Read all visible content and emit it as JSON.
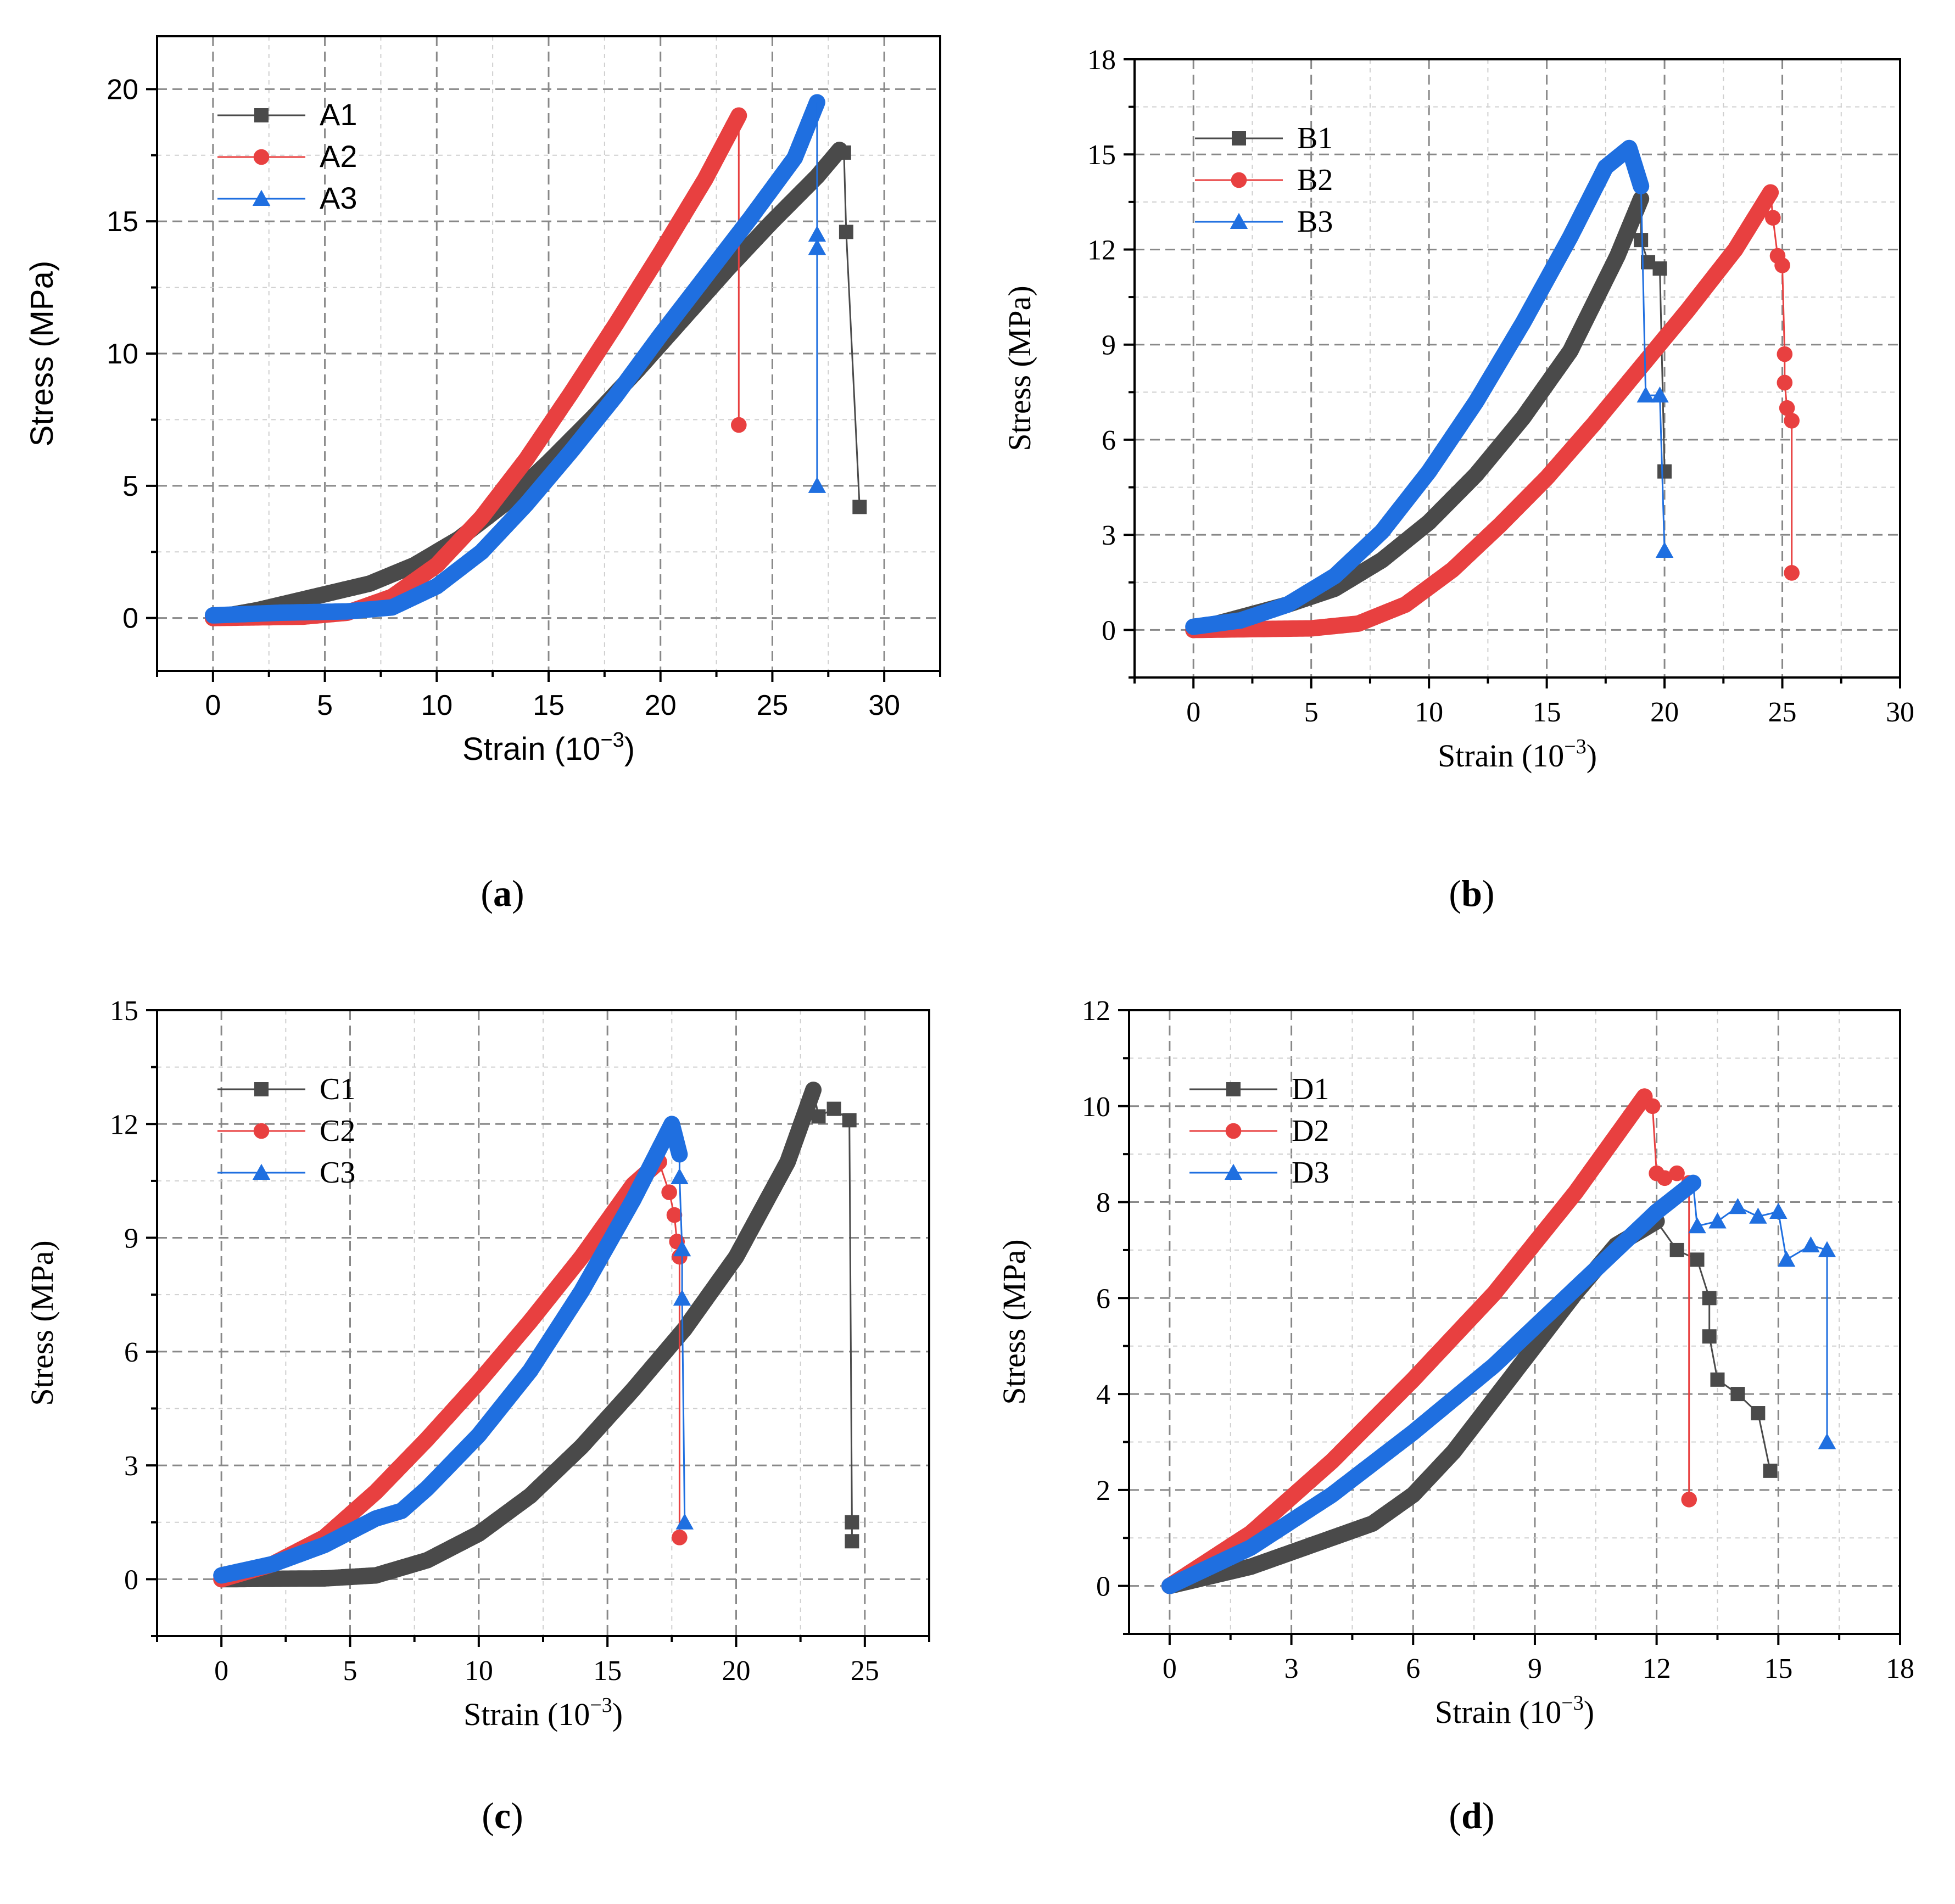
{
  "panels": [
    {
      "id": "a",
      "caption": "a",
      "font": "sans",
      "xlabel": "Strain (10",
      "xlabel_sup": "−3",
      "xlabel_tail": ")",
      "ylabel": "Stress (MPa)",
      "xlim": [
        -2.5,
        32.5
      ],
      "ylim": [
        -2,
        22
      ],
      "xticks": [
        0,
        5,
        10,
        15,
        20,
        25,
        30
      ],
      "yticks": [
        0,
        5,
        10,
        15,
        20
      ],
      "legend": "top-left",
      "series": [
        {
          "name": "A1",
          "color": "#4a4a4a",
          "marker": "square",
          "curve": [
            [
              0,
              0
            ],
            [
              2,
              0.3
            ],
            [
              3,
              0.5
            ],
            [
              5,
              0.9
            ],
            [
              7,
              1.3
            ],
            [
              9,
              2.0
            ],
            [
              11,
              3.0
            ],
            [
              13,
              4.3
            ],
            [
              15,
              5.9
            ],
            [
              17,
              7.6
            ],
            [
              19,
              9.4
            ],
            [
              21,
              11.3
            ],
            [
              23,
              13.2
            ],
            [
              25,
              15.0
            ],
            [
              27,
              16.7
            ],
            [
              28,
              17.7
            ]
          ],
          "drop": [
            [
              28.2,
              17.6
            ],
            [
              28.3,
              14.6
            ],
            [
              28.9,
              4.2
            ]
          ]
        },
        {
          "name": "A2",
          "color": "#e84040",
          "marker": "circle",
          "curve": [
            [
              0,
              0
            ],
            [
              4,
              0.05
            ],
            [
              6,
              0.2
            ],
            [
              8,
              0.8
            ],
            [
              10,
              2.0
            ],
            [
              12,
              3.8
            ],
            [
              14,
              6.0
            ],
            [
              16,
              8.5
            ],
            [
              18,
              11.1
            ],
            [
              20,
              13.8
            ],
            [
              22,
              16.6
            ],
            [
              23.5,
              19.0
            ]
          ],
          "drop": [
            [
              23.5,
              19.0
            ],
            [
              23.5,
              7.3
            ]
          ]
        },
        {
          "name": "A3",
          "color": "#1f6fe0",
          "marker": "triangle",
          "curve": [
            [
              0,
              0.1
            ],
            [
              3,
              0.2
            ],
            [
              6,
              0.25
            ],
            [
              8,
              0.4
            ],
            [
              10,
              1.2
            ],
            [
              12,
              2.5
            ],
            [
              14,
              4.3
            ],
            [
              16,
              6.3
            ],
            [
              18,
              8.4
            ],
            [
              20,
              10.7
            ],
            [
              22,
              12.9
            ],
            [
              24,
              15.1
            ],
            [
              26,
              17.4
            ],
            [
              27,
              19.5
            ]
          ],
          "drop": [
            [
              27,
              14.5
            ],
            [
              27,
              14.0
            ],
            [
              27,
              5.0
            ]
          ]
        }
      ]
    },
    {
      "id": "b",
      "caption": "b",
      "font": "serif",
      "xlabel": "Strain (10",
      "xlabel_sup": "−3",
      "xlabel_tail": ")",
      "ylabel": "Stress (MPa)",
      "xlim": [
        -2.5,
        30
      ],
      "ylim": [
        -1.5,
        18
      ],
      "xticks": [
        0,
        5,
        10,
        15,
        20,
        25,
        30
      ],
      "yticks": [
        0,
        3,
        6,
        9,
        12,
        15,
        18
      ],
      "legend": "top-left",
      "series": [
        {
          "name": "B1",
          "color": "#4a4a4a",
          "marker": "square",
          "curve": [
            [
              0,
              0
            ],
            [
              2,
              0.4
            ],
            [
              4,
              0.8
            ],
            [
              6,
              1.3
            ],
            [
              8,
              2.2
            ],
            [
              10,
              3.4
            ],
            [
              12,
              4.9
            ],
            [
              14,
              6.7
            ],
            [
              16,
              8.8
            ],
            [
              18,
              11.8
            ],
            [
              19,
              13.6
            ]
          ],
          "drop": [
            [
              19,
              12.3
            ],
            [
              19.3,
              11.6
            ],
            [
              19.8,
              11.4
            ],
            [
              20,
              5.0
            ]
          ]
        },
        {
          "name": "B2",
          "color": "#e84040",
          "marker": "circle",
          "curve": [
            [
              0,
              0
            ],
            [
              5,
              0.05
            ],
            [
              7,
              0.2
            ],
            [
              9,
              0.8
            ],
            [
              11,
              1.9
            ],
            [
              13,
              3.3
            ],
            [
              15,
              4.8
            ],
            [
              17,
              6.5
            ],
            [
              19,
              8.3
            ],
            [
              21,
              10.1
            ],
            [
              23,
              12.0
            ],
            [
              24.5,
              13.8
            ]
          ],
          "drop": [
            [
              24.6,
              13.0
            ],
            [
              24.8,
              11.8
            ],
            [
              25,
              11.5
            ],
            [
              25.1,
              8.7
            ],
            [
              25.1,
              7.8
            ],
            [
              25.2,
              7.0
            ],
            [
              25.4,
              6.6
            ],
            [
              25.4,
              1.8
            ]
          ]
        },
        {
          "name": "B3",
          "color": "#1f6fe0",
          "marker": "triangle",
          "curve": [
            [
              0,
              0.1
            ],
            [
              2,
              0.3
            ],
            [
              4,
              0.8
            ],
            [
              6,
              1.7
            ],
            [
              8,
              3.1
            ],
            [
              10,
              5.0
            ],
            [
              12,
              7.2
            ],
            [
              14,
              9.7
            ],
            [
              16,
              12.4
            ],
            [
              17.5,
              14.6
            ],
            [
              18.5,
              15.2
            ],
            [
              19,
              14.0
            ]
          ],
          "drop": [
            [
              19.2,
              7.4
            ],
            [
              19.8,
              7.4
            ],
            [
              20,
              2.5
            ]
          ]
        }
      ]
    },
    {
      "id": "c",
      "caption": "c",
      "font": "serif",
      "xlabel": "Strain (10",
      "xlabel_sup": "−3",
      "xlabel_tail": ")",
      "ylabel": "Stress (MPa)",
      "xlim": [
        -2.5,
        27.5
      ],
      "ylim": [
        -1.5,
        15
      ],
      "xticks": [
        0,
        5,
        10,
        15,
        20,
        25
      ],
      "yticks": [
        0,
        3,
        6,
        9,
        12,
        15
      ],
      "legend": "top-left",
      "series": [
        {
          "name": "C1",
          "color": "#4a4a4a",
          "marker": "square",
          "curve": [
            [
              0,
              0
            ],
            [
              4,
              0.02
            ],
            [
              6,
              0.1
            ],
            [
              8,
              0.5
            ],
            [
              10,
              1.2
            ],
            [
              12,
              2.2
            ],
            [
              14,
              3.5
            ],
            [
              16,
              5.0
            ],
            [
              18,
              6.6
            ],
            [
              20,
              8.5
            ],
            [
              22,
              11.0
            ],
            [
              23,
              12.9
            ]
          ],
          "drop": [
            [
              23.2,
              12.2
            ],
            [
              23.8,
              12.4
            ],
            [
              24.4,
              12.1
            ],
            [
              24.5,
              1.5
            ],
            [
              24.5,
              1.0
            ]
          ]
        },
        {
          "name": "C2",
          "color": "#e84040",
          "marker": "circle",
          "curve": [
            [
              0,
              0
            ],
            [
              2,
              0.4
            ],
            [
              4,
              1.1
            ],
            [
              6,
              2.3
            ],
            [
              8,
              3.7
            ],
            [
              10,
              5.2
            ],
            [
              12,
              6.8
            ],
            [
              14,
              8.5
            ],
            [
              16,
              10.4
            ],
            [
              17,
              11.0
            ]
          ],
          "drop": [
            [
              17.4,
              10.2
            ],
            [
              17.6,
              9.6
            ],
            [
              17.7,
              8.9
            ],
            [
              17.8,
              8.5
            ],
            [
              17.8,
              1.1
            ]
          ]
        },
        {
          "name": "C3",
          "color": "#1f6fe0",
          "marker": "triangle",
          "curve": [
            [
              0,
              0.1
            ],
            [
              2,
              0.4
            ],
            [
              4,
              0.9
            ],
            [
              6,
              1.6
            ],
            [
              7,
              1.8
            ],
            [
              8,
              2.4
            ],
            [
              10,
              3.8
            ],
            [
              12,
              5.5
            ],
            [
              14,
              7.6
            ],
            [
              16,
              10.0
            ],
            [
              17.5,
              12.0
            ],
            [
              17.8,
              11.2
            ]
          ],
          "drop": [
            [
              17.8,
              10.6
            ],
            [
              17.9,
              8.7
            ],
            [
              17.9,
              7.4
            ],
            [
              18,
              1.5
            ]
          ]
        }
      ]
    },
    {
      "id": "d",
      "caption": "d",
      "font": "serif",
      "xlabel": "Strain (10",
      "xlabel_sup": "−3",
      "xlabel_tail": ")",
      "ylabel": "Stress (MPa)",
      "xlim": [
        -1,
        18
      ],
      "ylim": [
        -1,
        12
      ],
      "xticks": [
        0,
        3,
        6,
        9,
        12,
        15,
        18
      ],
      "yticks": [
        0,
        2,
        4,
        6,
        8,
        10,
        12
      ],
      "legend": "top-left",
      "series": [
        {
          "name": "D1",
          "color": "#4a4a4a",
          "marker": "square",
          "curve": [
            [
              0,
              0
            ],
            [
              2,
              0.4
            ],
            [
              4,
              1.0
            ],
            [
              5,
              1.3
            ],
            [
              6,
              1.9
            ],
            [
              7,
              2.8
            ],
            [
              8,
              3.9
            ],
            [
              9,
              5.0
            ],
            [
              10,
              6.1
            ],
            [
              11,
              7.1
            ],
            [
              12,
              7.6
            ]
          ],
          "drop": [
            [
              12.5,
              7.0
            ],
            [
              13,
              6.8
            ],
            [
              13.3,
              6.0
            ],
            [
              13.3,
              5.2
            ],
            [
              13.5,
              4.3
            ],
            [
              14,
              4.0
            ],
            [
              14.5,
              3.6
            ],
            [
              14.8,
              2.4
            ]
          ]
        },
        {
          "name": "D2",
          "color": "#e84040",
          "marker": "circle",
          "curve": [
            [
              0,
              0
            ],
            [
              2,
              1.1
            ],
            [
              4,
              2.6
            ],
            [
              6,
              4.3
            ],
            [
              8,
              6.1
            ],
            [
              10,
              8.2
            ],
            [
              11.7,
              10.2
            ]
          ],
          "drop": [
            [
              11.9,
              10.0
            ],
            [
              12.0,
              8.6
            ],
            [
              12.2,
              8.5
            ],
            [
              12.5,
              8.6
            ],
            [
              12.8,
              8.4
            ],
            [
              12.8,
              1.8
            ]
          ]
        },
        {
          "name": "D3",
          "color": "#1f6fe0",
          "marker": "triangle",
          "curve": [
            [
              0,
              0
            ],
            [
              2,
              0.8
            ],
            [
              4,
              1.9
            ],
            [
              6,
              3.2
            ],
            [
              8,
              4.6
            ],
            [
              10,
              6.2
            ],
            [
              12,
              7.8
            ],
            [
              12.9,
              8.4
            ]
          ],
          "drop": [
            [
              13,
              7.5
            ],
            [
              13.5,
              7.6
            ],
            [
              14,
              7.9
            ],
            [
              14.5,
              7.7
            ],
            [
              15,
              7.8
            ],
            [
              15.2,
              6.8
            ],
            [
              15.8,
              7.1
            ],
            [
              16.2,
              7.0
            ],
            [
              16.2,
              3.0
            ]
          ]
        }
      ]
    }
  ]
}
